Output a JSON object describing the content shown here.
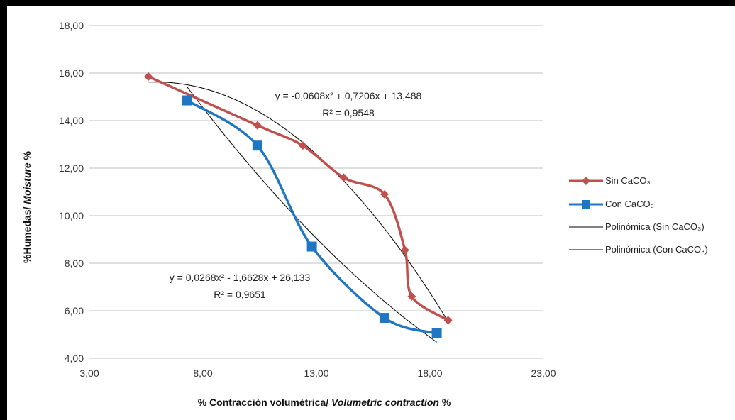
{
  "chart_data": {
    "type": "line",
    "xlabel": "% Contracción volumétrica/ Volumetric contraction %",
    "xlabel_main": "% Contracción volumétrica/ ",
    "xlabel_italic": "Volumetric contraction",
    "xlabel_tail": " %",
    "ylabel": "%Humedas/ Moisture %",
    "ylabel_main": "%Humedas/ ",
    "ylabel_italic": "Moisture",
    "ylabel_tail": " %",
    "xlim": [
      3,
      23
    ],
    "ylim": [
      4,
      18
    ],
    "x_ticks": [
      3,
      8,
      13,
      18,
      23
    ],
    "x_tick_labels": [
      "3,00",
      "8,00",
      "13,00",
      "18,00",
      "23,00"
    ],
    "y_ticks": [
      4,
      6,
      8,
      10,
      12,
      14,
      16,
      18
    ],
    "y_tick_labels": [
      "4,00",
      "6,00",
      "8,00",
      "10,00",
      "12,00",
      "14,00",
      "16,00",
      "18,00"
    ],
    "grid": "horizontal",
    "legend_position": "right",
    "series": [
      {
        "name": "Sin CaCO₃",
        "color": "#C0504D",
        "marker": "diamond",
        "x": [
          5.6,
          10.4,
          12.4,
          14.2,
          16.0,
          16.9,
          17.2,
          18.8
        ],
        "y": [
          15.85,
          13.8,
          12.95,
          11.6,
          10.9,
          8.55,
          6.6,
          5.6
        ]
      },
      {
        "name": "Con CaCO₃",
        "color": "#1F77C4",
        "marker": "square",
        "x": [
          7.3,
          10.4,
          12.8,
          16.0,
          18.3
        ],
        "y": [
          14.85,
          12.95,
          8.7,
          5.7,
          5.05
        ]
      }
    ],
    "trendlines": [
      {
        "name": "Polinómica (Sin CaCO₃)",
        "color": "#000000",
        "coefficients": [
          -0.0608,
          0.7206,
          13.488
        ],
        "x_range": [
          5.6,
          18.8
        ],
        "equation": "y = -0,0608x² + 0,7206x + 13,488",
        "r2": "R² = 0,9548"
      },
      {
        "name": "Polinómica (Con CaCO₃)",
        "color": "#000000",
        "coefficients": [
          0.0268,
          -1.6628,
          26.133
        ],
        "x_range": [
          7.3,
          18.3
        ],
        "equation": "y = 0,0268x² - 1,6628x + 26,133",
        "r2": "R² = 0,9651"
      }
    ]
  }
}
